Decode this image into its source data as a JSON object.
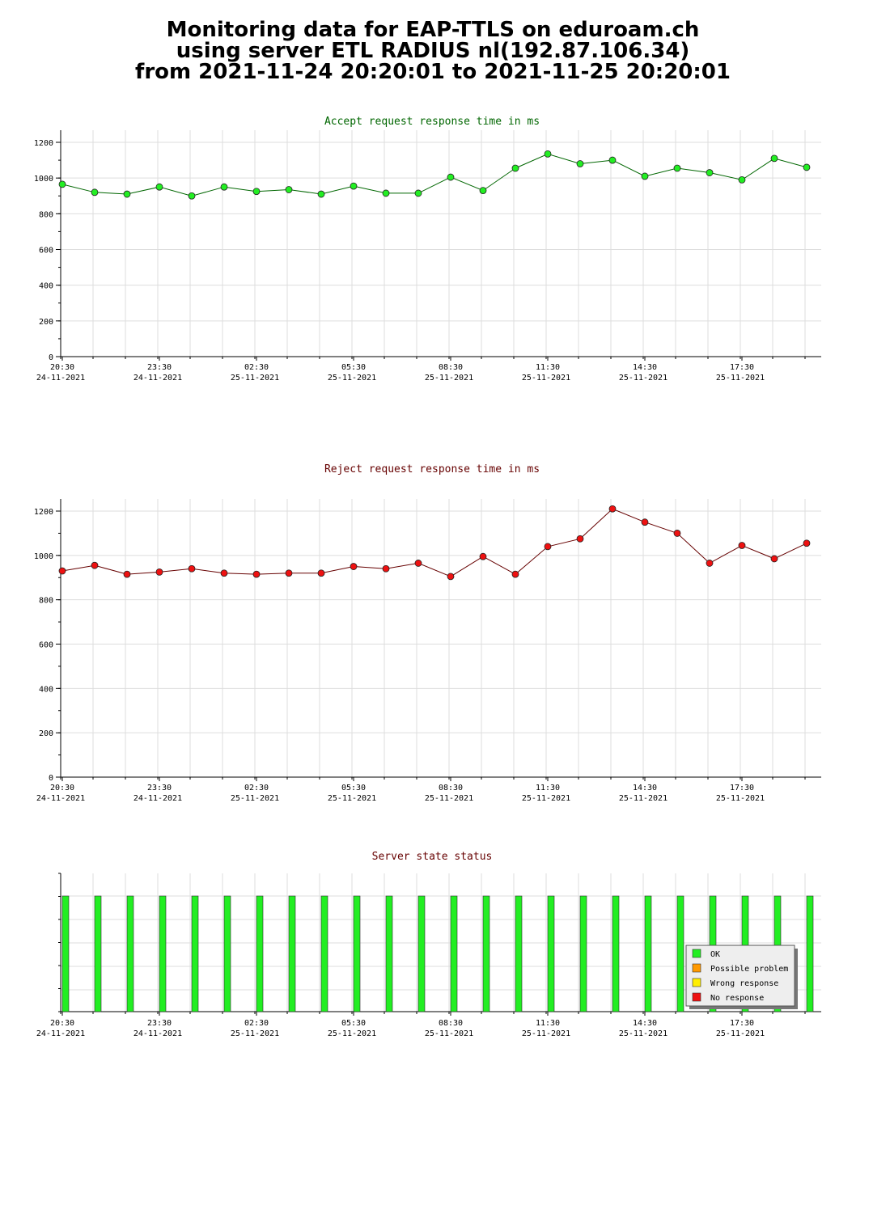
{
  "page": {
    "title_lines": [
      "Monitoring data for EAP-TTLS on eduroam.ch",
      "using server ETL RADIUS nl(192.87.106.34)",
      "from 2021-11-24 20:20:01 to 2021-11-25 20:20:01"
    ]
  },
  "colors": {
    "accept_title": "#006600",
    "reject_title": "#660000",
    "status_title": "#660000",
    "accept_marker": "#22ee22",
    "reject_marker": "#ee1111",
    "ok": "#22ee22",
    "possible_problem": "#ff9900",
    "wrong_response": "#ffee00",
    "no_response": "#ee1111",
    "grid": "#dddddd"
  },
  "x_ticks": [
    {
      "time": "20:30",
      "date": "24-11-2021"
    },
    {
      "time": "23:30",
      "date": "24-11-2021"
    },
    {
      "time": "02:30",
      "date": "25-11-2021"
    },
    {
      "time": "05:30",
      "date": "25-11-2021"
    },
    {
      "time": "08:30",
      "date": "25-11-2021"
    },
    {
      "time": "11:30",
      "date": "25-11-2021"
    },
    {
      "time": "14:30",
      "date": "25-11-2021"
    },
    {
      "time": "17:30",
      "date": "25-11-2021"
    }
  ],
  "chart_data": [
    {
      "type": "line",
      "title": "Accept request response time in ms",
      "x": [
        "20:30",
        "21:30",
        "22:30",
        "23:30",
        "00:30",
        "01:30",
        "02:30",
        "03:30",
        "04:30",
        "05:30",
        "06:30",
        "07:30",
        "08:30",
        "09:30",
        "10:30",
        "11:30",
        "12:30",
        "13:30",
        "14:30",
        "15:30",
        "16:30",
        "17:30",
        "18:30",
        "19:30"
      ],
      "values": [
        965,
        920,
        910,
        950,
        900,
        950,
        925,
        935,
        910,
        955,
        915,
        915,
        1005,
        930,
        1055,
        1135,
        1080,
        1100,
        1010,
        1055,
        1030,
        990,
        1110,
        1060
      ],
      "ylim": [
        0,
        1200
      ],
      "yticks": [
        "0",
        "200",
        "400",
        "600",
        "800",
        "1000",
        "1200"
      ],
      "grid": true
    },
    {
      "type": "line",
      "title": "Reject request response time in ms",
      "x": [
        "20:30",
        "21:30",
        "22:30",
        "23:30",
        "00:30",
        "01:30",
        "02:30",
        "03:30",
        "04:30",
        "05:30",
        "06:30",
        "07:30",
        "08:30",
        "09:30",
        "10:30",
        "11:30",
        "12:30",
        "13:30",
        "14:30",
        "15:30",
        "16:30",
        "17:30",
        "18:30",
        "19:30"
      ],
      "values": [
        930,
        955,
        915,
        925,
        940,
        920,
        915,
        920,
        920,
        950,
        940,
        965,
        905,
        995,
        915,
        1040,
        1075,
        1210,
        1150,
        1100,
        965,
        1045,
        985,
        1055
      ],
      "ylim": [
        0,
        1200
      ],
      "yticks": [
        "0",
        "200",
        "400",
        "600",
        "800",
        "1000",
        "1200"
      ],
      "grid": true
    },
    {
      "type": "bar",
      "title": "Server state status",
      "x": [
        "20:30",
        "21:30",
        "22:30",
        "23:30",
        "00:30",
        "01:30",
        "02:30",
        "03:30",
        "04:30",
        "05:30",
        "06:30",
        "07:30",
        "08:30",
        "09:30",
        "10:30",
        "11:30",
        "12:30",
        "13:30",
        "14:30",
        "15:30",
        "16:30",
        "17:30",
        "18:30",
        "19:30"
      ],
      "states": [
        "OK",
        "OK",
        "OK",
        "OK",
        "OK",
        "OK",
        "OK",
        "OK",
        "OK",
        "OK",
        "OK",
        "OK",
        "OK",
        "OK",
        "OK",
        "OK",
        "OK",
        "OK",
        "OK",
        "OK",
        "OK",
        "OK",
        "OK",
        "OK"
      ],
      "legend": [
        "OK",
        "Possible problem",
        "Wrong response",
        "No response"
      ],
      "legend_position": "bottom-right",
      "grid": true
    }
  ]
}
